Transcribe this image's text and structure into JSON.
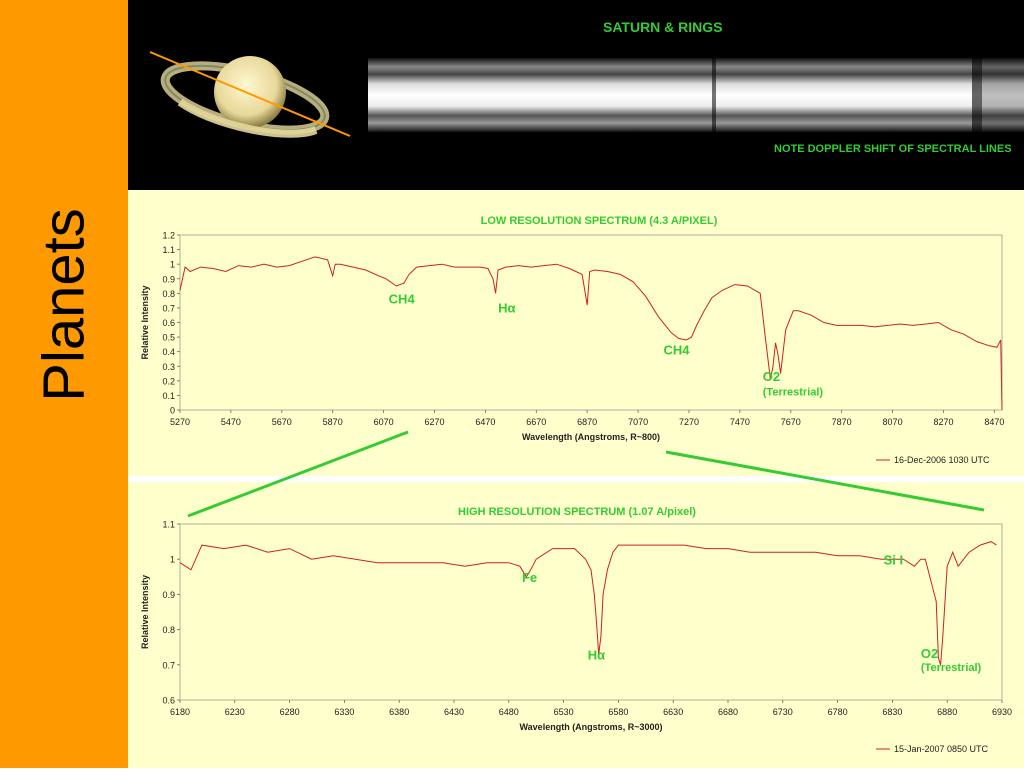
{
  "slide": {
    "title": "Planets",
    "saturn_title": "SATURN & RINGS",
    "doppler_note": "NOTE DOPPLER SHIFT OF SPECTRAL LINES",
    "colors": {
      "sidebar": "#ff9900",
      "label_green": "#33cc33",
      "panel_bg": "#ffffcc",
      "line": "#cc2222",
      "zoom_line": "#33cc33"
    }
  },
  "chart_data": [
    {
      "type": "line",
      "title": "LOW RESOLUTION SPECTRUM (4.3 A/PIXEL)",
      "xlabel": "Wavelength (Angstroms, R~800)",
      "ylabel": "Relative Intensity",
      "xlim": [
        5270,
        8500
      ],
      "ylim": [
        0,
        1.2
      ],
      "xticks": [
        5270,
        5470,
        5670,
        5870,
        6070,
        6270,
        6470,
        6670,
        6870,
        7070,
        7270,
        7470,
        7670,
        7870,
        8070,
        8270,
        8470
      ],
      "yticks": [
        0,
        0.1,
        0.2,
        0.3,
        0.4,
        0.5,
        0.6,
        0.7,
        0.8,
        0.9,
        1,
        1.1,
        1.2
      ],
      "legend": "16-Dec-2006 1030 UTC",
      "legend_position": "bottom-right",
      "series": [
        {
          "x": [
            5270,
            5290,
            5310,
            5350,
            5400,
            5450,
            5500,
            5550,
            5600,
            5650,
            5700,
            5750,
            5800,
            5850,
            5870,
            5880,
            5900,
            5950,
            6000,
            6050,
            6080,
            6120,
            6150,
            6170,
            6200,
            6250,
            6300,
            6350,
            6400,
            6450,
            6480,
            6500,
            6510,
            6520,
            6550,
            6600,
            6650,
            6700,
            6750,
            6800,
            6850,
            6870,
            6880,
            6900,
            6950,
            7000,
            7050,
            7100,
            7150,
            7200,
            7230,
            7260,
            7280,
            7300,
            7330,
            7360,
            7400,
            7450,
            7500,
            7550,
            7570,
            7590,
            7600,
            7610,
            7620,
            7630,
            7650,
            7680,
            7700,
            7750,
            7800,
            7850,
            7900,
            7950,
            8000,
            8050,
            8100,
            8150,
            8200,
            8250,
            8300,
            8350,
            8400,
            8450,
            8480,
            8495,
            8500
          ],
          "y": [
            0.82,
            0.98,
            0.95,
            0.98,
            0.97,
            0.95,
            0.99,
            0.98,
            1.0,
            0.98,
            0.99,
            1.02,
            1.05,
            1.03,
            0.92,
            1.0,
            1.0,
            0.98,
            0.96,
            0.92,
            0.9,
            0.85,
            0.87,
            0.93,
            0.98,
            0.99,
            1.0,
            0.98,
            0.98,
            0.98,
            0.97,
            0.9,
            0.8,
            0.96,
            0.98,
            0.99,
            0.98,
            0.99,
            1.0,
            0.97,
            0.93,
            0.72,
            0.95,
            0.96,
            0.95,
            0.93,
            0.88,
            0.78,
            0.64,
            0.53,
            0.49,
            0.48,
            0.5,
            0.58,
            0.68,
            0.77,
            0.82,
            0.86,
            0.85,
            0.8,
            0.5,
            0.21,
            0.3,
            0.46,
            0.38,
            0.25,
            0.55,
            0.68,
            0.68,
            0.65,
            0.6,
            0.58,
            0.58,
            0.58,
            0.57,
            0.58,
            0.59,
            0.58,
            0.59,
            0.6,
            0.55,
            0.52,
            0.47,
            0.44,
            0.43,
            0.48,
            0.0
          ]
        }
      ],
      "annotations": [
        {
          "text": "CH4",
          "x": 6090,
          "y": 0.73
        },
        {
          "text": "Hα",
          "x": 6520,
          "y": 0.67
        },
        {
          "text": "CH4",
          "x": 7170,
          "y": 0.38
        },
        {
          "text": "O2",
          "x": 7560,
          "y": 0.2
        },
        {
          "text": "(Terrestrial)",
          "x": 7560,
          "y": 0.1
        }
      ]
    },
    {
      "type": "line",
      "title": "HIGH RESOLUTION SPECTRUM (1.07 A/pixel)",
      "xlabel": "Wavelength (Angstroms, R~3000)",
      "ylabel": "Relative Intensity",
      "xlim": [
        6180,
        6930
      ],
      "ylim": [
        0.6,
        1.1
      ],
      "xticks": [
        6180,
        6230,
        6280,
        6330,
        6380,
        6430,
        6480,
        6530,
        6580,
        6630,
        6680,
        6730,
        6780,
        6830,
        6880,
        6930
      ],
      "yticks": [
        0.6,
        0.7,
        0.8,
        0.9,
        1,
        1.1
      ],
      "legend": "15-Jan-2007 0850 UTC",
      "legend_position": "bottom-right",
      "series": [
        {
          "x": [
            6180,
            6190,
            6200,
            6220,
            6240,
            6260,
            6280,
            6300,
            6320,
            6340,
            6360,
            6380,
            6400,
            6420,
            6440,
            6460,
            6480,
            6490,
            6496,
            6500,
            6505,
            6520,
            6540,
            6550,
            6555,
            6558,
            6560,
            6562,
            6564,
            6566,
            6570,
            6575,
            6580,
            6600,
            6620,
            6640,
            6660,
            6680,
            6700,
            6720,
            6740,
            6760,
            6780,
            6800,
            6820,
            6840,
            6850,
            6856,
            6860,
            6870,
            6872,
            6874,
            6876,
            6880,
            6885,
            6890,
            6900,
            6910,
            6920,
            6925
          ],
          "y": [
            0.99,
            0.97,
            1.04,
            1.03,
            1.04,
            1.02,
            1.03,
            1.0,
            1.01,
            1.0,
            0.99,
            0.99,
            0.99,
            0.99,
            0.98,
            0.99,
            0.99,
            0.98,
            0.95,
            0.97,
            1.0,
            1.03,
            1.03,
            1.0,
            0.97,
            0.9,
            0.82,
            0.73,
            0.78,
            0.9,
            0.97,
            1.02,
            1.04,
            1.04,
            1.04,
            1.04,
            1.03,
            1.03,
            1.02,
            1.02,
            1.02,
            1.02,
            1.01,
            1.01,
            1.0,
            1.0,
            0.98,
            1.0,
            1.0,
            0.88,
            0.72,
            0.7,
            0.78,
            0.98,
            1.02,
            0.98,
            1.02,
            1.04,
            1.05,
            1.04
          ]
        }
      ],
      "annotations": [
        {
          "text": "Fe",
          "x": 6492,
          "y": 0.935
        },
        {
          "text": "Hα",
          "x": 6552,
          "y": 0.715
        },
        {
          "text": "Si I",
          "x": 6822,
          "y": 0.985
        },
        {
          "text": "O2",
          "x": 6856,
          "y": 0.72
        },
        {
          "text": "(Terrestrial)",
          "x": 6856,
          "y": 0.683
        }
      ]
    }
  ]
}
